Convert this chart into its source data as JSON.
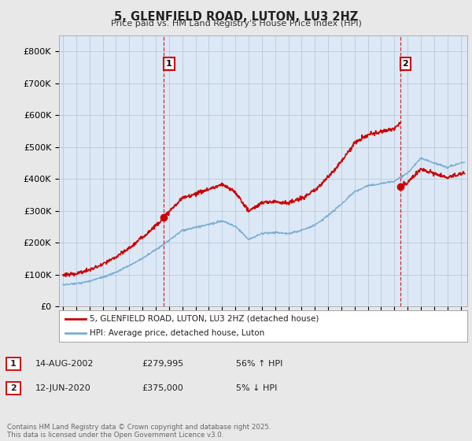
{
  "title": "5, GLENFIELD ROAD, LUTON, LU3 2HZ",
  "subtitle": "Price paid vs. HM Land Registry's House Price Index (HPI)",
  "background_color": "#e8e8e8",
  "plot_bg_color": "#dce8f5",
  "ylim": [
    0,
    850000
  ],
  "yticks": [
    0,
    100000,
    200000,
    300000,
    400000,
    500000,
    600000,
    700000,
    800000
  ],
  "ytick_labels": [
    "£0",
    "£100K",
    "£200K",
    "£300K",
    "£400K",
    "£500K",
    "£600K",
    "£700K",
    "£800K"
  ],
  "red_line_color": "#cc0000",
  "blue_line_color": "#7aadd4",
  "sale1_year": 2002.62,
  "sale1_price": 279995,
  "sale2_year": 2020.45,
  "sale2_price": 375000,
  "legend_line1": "5, GLENFIELD ROAD, LUTON, LU3 2HZ (detached house)",
  "legend_line2": "HPI: Average price, detached house, Luton",
  "table_row1": [
    "1",
    "14-AUG-2002",
    "£279,995",
    "56% ↑ HPI"
  ],
  "table_row2": [
    "2",
    "12-JUN-2020",
    "£375,000",
    "5% ↓ HPI"
  ],
  "footnote": "Contains HM Land Registry data © Crown copyright and database right 2025.\nThis data is licensed under the Open Government Licence v3.0.",
  "years_hpi": [
    1995,
    1996,
    1997,
    1998,
    1999,
    2000,
    2001,
    2002,
    2003,
    2004,
    2005,
    2006,
    2007,
    2008,
    2009,
    2010,
    2011,
    2012,
    2013,
    2014,
    2015,
    2016,
    2017,
    2018,
    2019,
    2020,
    2021,
    2022,
    2023,
    2024,
    2025
  ],
  "hpi_values": [
    68000,
    72000,
    80000,
    92000,
    108000,
    128000,
    152000,
    178000,
    208000,
    238000,
    248000,
    258000,
    268000,
    252000,
    210000,
    228000,
    232000,
    228000,
    238000,
    255000,
    285000,
    320000,
    360000,
    378000,
    385000,
    393000,
    418000,
    465000,
    450000,
    435000,
    450000
  ]
}
